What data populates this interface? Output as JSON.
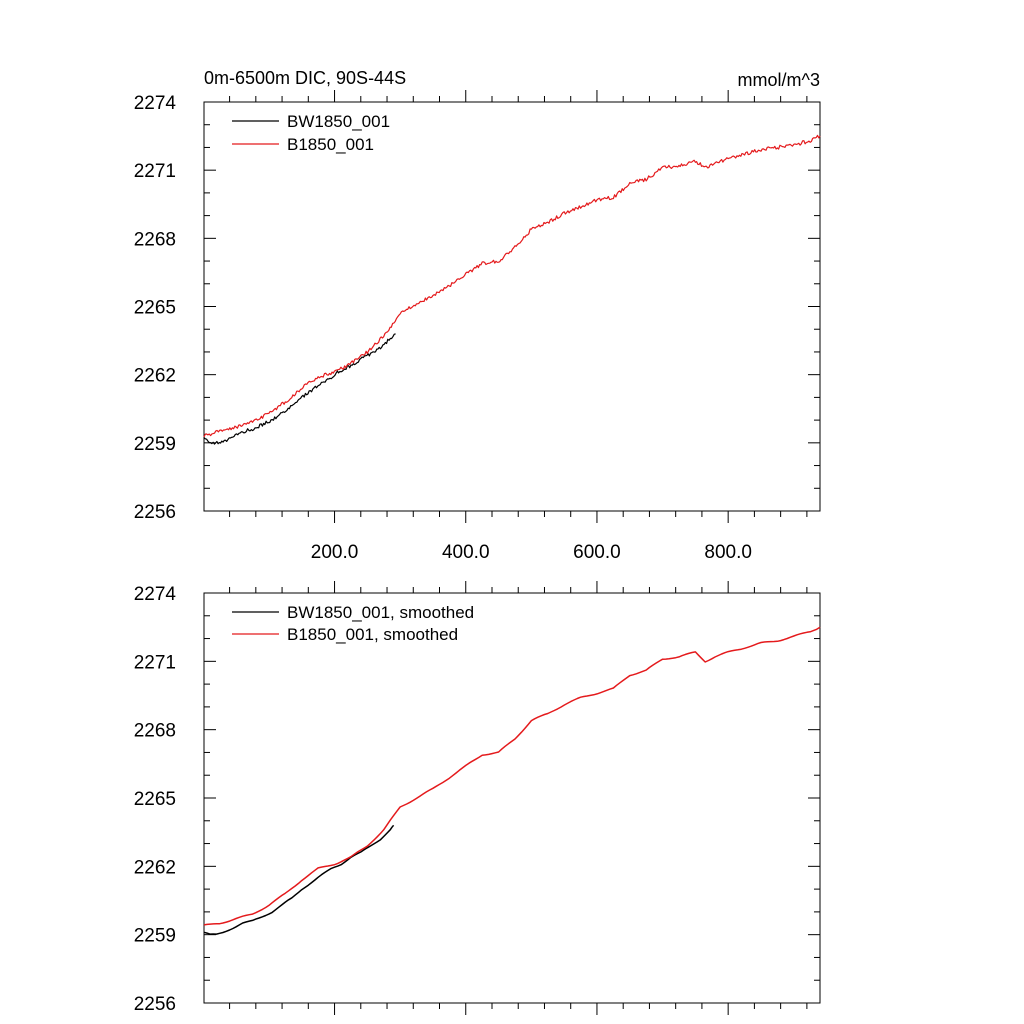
{
  "figure": {
    "title_left": "0m-6500m DIC, 90S-44S",
    "title_right": "mmol/m^3"
  },
  "chart_data": [
    {
      "type": "line",
      "title": "0m-6500m DIC, 90S-44S",
      "units": "mmol/m^3",
      "xlim": [
        1,
        940
      ],
      "ylim": [
        2256,
        2274
      ],
      "yticks": [
        2256,
        2259,
        2262,
        2265,
        2268,
        2271,
        2274
      ],
      "ytick_labels": [
        "2256",
        "2259",
        "2262",
        "2265",
        "2268",
        "2271",
        "2274"
      ],
      "xticks": [
        200,
        400,
        600,
        800
      ],
      "xtick_labels": [
        "200.0",
        "400.0",
        "600.0",
        "800.0"
      ],
      "legend_location": "top-left",
      "series": [
        {
          "name": "BW1850_001",
          "color": "#000000",
          "x": [
            1,
            15,
            30,
            45,
            60,
            75,
            90,
            105,
            120,
            135,
            150,
            165,
            180,
            195,
            210,
            225,
            240,
            255,
            270,
            285,
            293
          ],
          "y": [
            2259.2,
            2259.0,
            2259.0,
            2259.3,
            2259.5,
            2259.6,
            2259.8,
            2260.0,
            2260.3,
            2260.6,
            2261.0,
            2261.3,
            2261.6,
            2261.9,
            2262.2,
            2262.4,
            2262.7,
            2262.9,
            2263.2,
            2263.6,
            2263.8
          ]
        },
        {
          "name": "B1850_001",
          "color": "#e41a1c",
          "x": [
            1,
            25,
            50,
            75,
            100,
            125,
            150,
            175,
            200,
            225,
            250,
            275,
            300,
            325,
            350,
            375,
            400,
            425,
            450,
            475,
            500,
            525,
            550,
            575,
            600,
            625,
            650,
            675,
            700,
            725,
            750,
            765,
            780,
            800,
            825,
            850,
            875,
            900,
            925,
            940
          ],
          "y": [
            2259.3,
            2259.5,
            2259.7,
            2259.9,
            2260.3,
            2260.8,
            2261.4,
            2261.9,
            2262.1,
            2262.5,
            2263.0,
            2263.7,
            2264.7,
            2265.1,
            2265.5,
            2265.9,
            2266.4,
            2266.9,
            2267.0,
            2267.6,
            2268.4,
            2268.7,
            2269.1,
            2269.4,
            2269.7,
            2269.8,
            2270.4,
            2270.6,
            2271.1,
            2271.2,
            2271.4,
            2271.1,
            2271.3,
            2271.5,
            2271.7,
            2271.9,
            2272.0,
            2272.1,
            2272.3,
            2272.5
          ]
        }
      ]
    },
    {
      "type": "line",
      "title": "",
      "xlim": [
        1,
        940
      ],
      "ylim": [
        2256,
        2274
      ],
      "yticks": [
        2256,
        2259,
        2262,
        2265,
        2268,
        2271,
        2274
      ],
      "ytick_labels": [
        "2256",
        "2259",
        "2262",
        "2265",
        "2268",
        "2271",
        "2274"
      ],
      "xticks": [
        200,
        400,
        600,
        800
      ],
      "xtick_labels": [],
      "legend_location": "top-left",
      "series": [
        {
          "name": "BW1850_001, smoothed",
          "color": "#000000",
          "x": [
            1,
            10,
            20,
            30,
            45,
            60,
            75,
            90,
            105,
            120,
            135,
            150,
            165,
            180,
            195,
            210,
            225,
            240,
            255,
            270,
            285,
            290
          ],
          "y": [
            2259.1,
            2259.0,
            2259.0,
            2259.1,
            2259.3,
            2259.5,
            2259.6,
            2259.8,
            2260.0,
            2260.3,
            2260.6,
            2261.0,
            2261.3,
            2261.6,
            2261.9,
            2262.1,
            2262.4,
            2262.6,
            2262.9,
            2263.2,
            2263.6,
            2263.8
          ]
        },
        {
          "name": "B1850_001, smoothed",
          "color": "#e41a1c",
          "x": [
            1,
            25,
            50,
            75,
            100,
            125,
            150,
            175,
            200,
            225,
            250,
            275,
            300,
            325,
            350,
            375,
            400,
            425,
            450,
            475,
            500,
            525,
            550,
            575,
            600,
            625,
            650,
            675,
            700,
            725,
            750,
            765,
            780,
            800,
            825,
            850,
            875,
            900,
            925,
            940
          ],
          "y": [
            2259.4,
            2259.5,
            2259.7,
            2259.9,
            2260.3,
            2260.8,
            2261.4,
            2261.9,
            2262.1,
            2262.4,
            2262.9,
            2263.6,
            2264.6,
            2265.0,
            2265.4,
            2265.9,
            2266.4,
            2266.9,
            2267.0,
            2267.6,
            2268.4,
            2268.7,
            2269.1,
            2269.4,
            2269.6,
            2269.8,
            2270.4,
            2270.6,
            2271.1,
            2271.2,
            2271.4,
            2271.0,
            2271.2,
            2271.4,
            2271.6,
            2271.8,
            2271.9,
            2272.1,
            2272.3,
            2272.5
          ]
        }
      ]
    }
  ]
}
